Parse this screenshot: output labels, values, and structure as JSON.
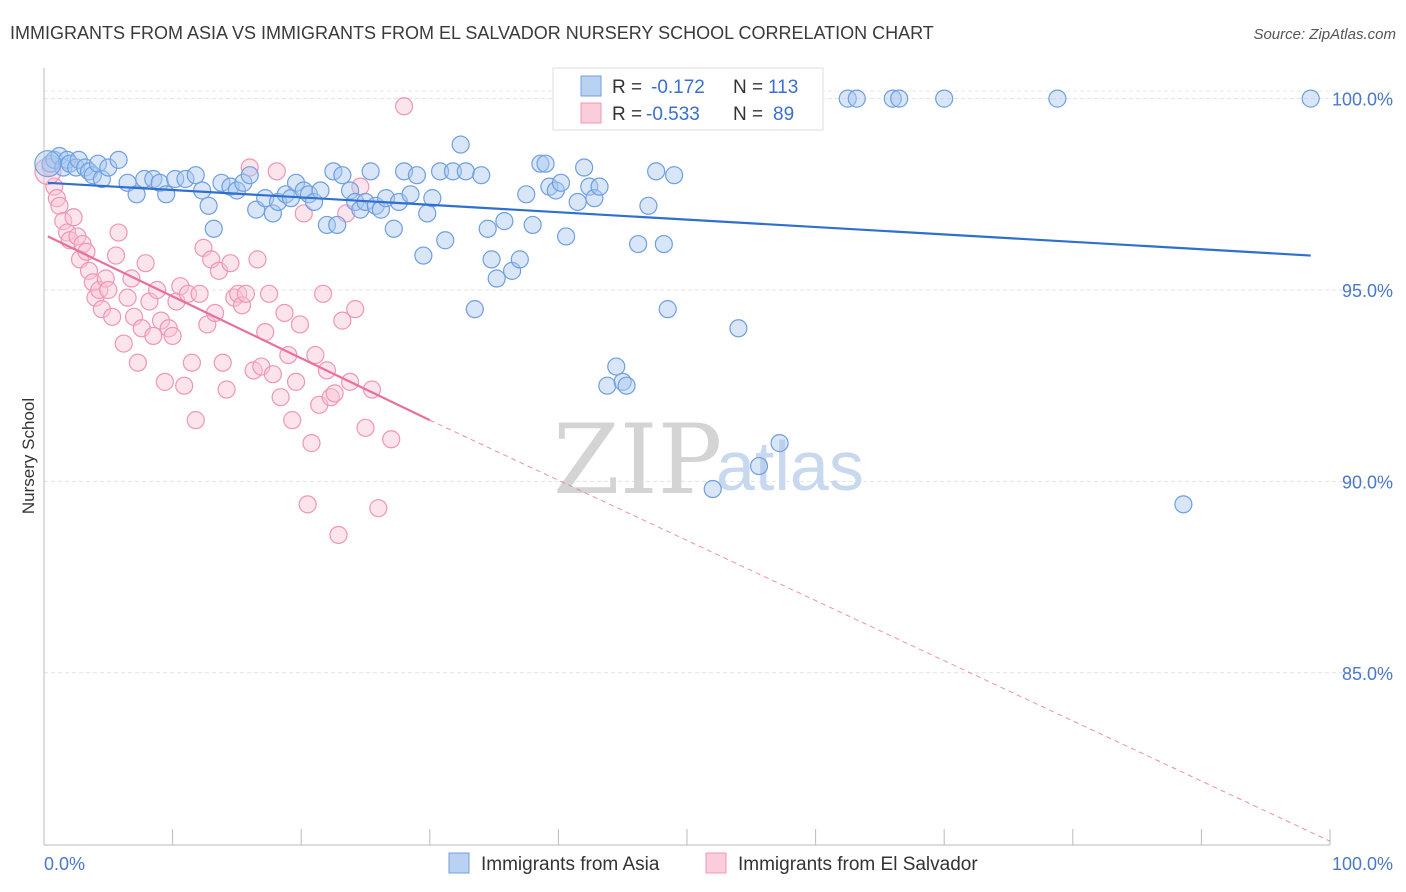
{
  "title": "IMMIGRANTS FROM ASIA VS IMMIGRANTS FROM EL SALVADOR NURSERY SCHOOL CORRELATION CHART",
  "source": "Source: ZipAtlas.com",
  "watermark": {
    "zip": "ZIP",
    "atlas": "atlas"
  },
  "legend_box": {
    "r_label": "R =",
    "n_label": "N =",
    "series": [
      {
        "r": "-0.172",
        "n": "113",
        "color": "#9ec0ec"
      },
      {
        "r": "-0.533",
        "n": "89",
        "color": "#f6b7cc"
      }
    ]
  },
  "chart_data": {
    "type": "scatter",
    "title": "IMMIGRANTS FROM ASIA VS IMMIGRANTS FROM EL SALVADOR NURSERY SCHOOL CORRELATION CHART",
    "xlabel": "",
    "ylabel": "Nursery School",
    "xlim": [
      0,
      100
    ],
    "ylim": [
      80.5,
      100.8
    ],
    "x_tick_labels": [
      "0.0%",
      "100.0%"
    ],
    "y_ticks": [
      85,
      90,
      95,
      100
    ],
    "y_tick_labels": [
      "85.0%",
      "90.0%",
      "95.0%",
      "100.0%"
    ],
    "grid": true,
    "legend_position": "bottom",
    "series": [
      {
        "name": "Immigrants from Asia",
        "color": "#6f9fe0",
        "fill": "#a9c8f0",
        "line_color": "#2f6fd0",
        "trend": {
          "x": [
            0.3,
            98.5
          ],
          "y": [
            97.8,
            95.9
          ],
          "dashed_to": null
        },
        "points": [
          [
            0.5,
            98.3
          ],
          [
            0.8,
            98.4
          ],
          [
            1.2,
            98.5
          ],
          [
            1.5,
            98.2
          ],
          [
            1.8,
            98.4
          ],
          [
            2.0,
            98.3
          ],
          [
            2.5,
            98.2
          ],
          [
            2.7,
            98.4
          ],
          [
            3.2,
            98.2
          ],
          [
            3.5,
            98.1
          ],
          [
            3.8,
            98.0
          ],
          [
            4.2,
            98.3
          ],
          [
            4.5,
            97.9
          ],
          [
            5.0,
            98.2
          ],
          [
            5.8,
            98.4
          ],
          [
            6.5,
            97.8
          ],
          [
            7.2,
            97.5
          ],
          [
            7.8,
            97.9
          ],
          [
            8.5,
            97.9
          ],
          [
            9.0,
            97.8
          ],
          [
            9.5,
            97.5
          ],
          [
            10.2,
            97.9
          ],
          [
            11.0,
            97.9
          ],
          [
            11.8,
            98.0
          ],
          [
            12.3,
            97.6
          ],
          [
            12.8,
            97.2
          ],
          [
            13.2,
            96.6
          ],
          [
            13.8,
            97.8
          ],
          [
            14.5,
            97.7
          ],
          [
            15.0,
            97.6
          ],
          [
            15.5,
            97.8
          ],
          [
            16.0,
            98.0
          ],
          [
            16.5,
            97.1
          ],
          [
            17.2,
            97.4
          ],
          [
            17.8,
            97.0
          ],
          [
            18.2,
            97.3
          ],
          [
            18.8,
            97.5
          ],
          [
            19.2,
            97.4
          ],
          [
            19.6,
            97.8
          ],
          [
            20.2,
            97.6
          ],
          [
            20.6,
            97.5
          ],
          [
            21.0,
            97.3
          ],
          [
            21.5,
            97.6
          ],
          [
            22.0,
            96.7
          ],
          [
            22.5,
            98.1
          ],
          [
            22.8,
            96.7
          ],
          [
            23.2,
            98.0
          ],
          [
            23.8,
            97.6
          ],
          [
            24.2,
            97.3
          ],
          [
            24.6,
            97.1
          ],
          [
            25.0,
            97.3
          ],
          [
            25.4,
            98.1
          ],
          [
            25.8,
            97.2
          ],
          [
            26.2,
            97.1
          ],
          [
            26.6,
            97.4
          ],
          [
            27.2,
            96.6
          ],
          [
            27.6,
            97.3
          ],
          [
            28.0,
            98.1
          ],
          [
            28.5,
            97.5
          ],
          [
            29.0,
            98.0
          ],
          [
            29.5,
            95.9
          ],
          [
            29.8,
            97.0
          ],
          [
            30.2,
            97.4
          ],
          [
            30.8,
            98.1
          ],
          [
            31.2,
            96.3
          ],
          [
            31.8,
            98.1
          ],
          [
            32.4,
            98.8
          ],
          [
            32.8,
            98.1
          ],
          [
            33.5,
            94.5
          ],
          [
            34.0,
            98.0
          ],
          [
            34.5,
            96.6
          ],
          [
            34.8,
            95.8
          ],
          [
            35.2,
            95.3
          ],
          [
            35.8,
            96.8
          ],
          [
            36.4,
            95.5
          ],
          [
            37.0,
            95.8
          ],
          [
            37.5,
            97.5
          ],
          [
            38.0,
            96.7
          ],
          [
            38.6,
            98.3
          ],
          [
            39.0,
            98.3
          ],
          [
            39.3,
            97.7
          ],
          [
            39.8,
            97.6
          ],
          [
            40.2,
            97.8
          ],
          [
            40.6,
            96.4
          ],
          [
            41.0,
            99.9
          ],
          [
            41.5,
            97.3
          ],
          [
            42.0,
            98.2
          ],
          [
            42.4,
            97.7
          ],
          [
            42.8,
            97.4
          ],
          [
            43.2,
            97.7
          ],
          [
            43.8,
            92.5
          ],
          [
            44.5,
            93.0
          ],
          [
            45.0,
            92.6
          ],
          [
            45.3,
            92.5
          ],
          [
            46.2,
            96.2
          ],
          [
            46.8,
            99.9
          ],
          [
            47.0,
            97.2
          ],
          [
            47.6,
            98.1
          ],
          [
            48.2,
            96.2
          ],
          [
            48.5,
            94.5
          ],
          [
            49.0,
            98.0
          ],
          [
            49.3,
            100.0
          ],
          [
            52.0,
            89.8
          ],
          [
            53.0,
            100.0
          ],
          [
            54.0,
            94.0
          ],
          [
            55.6,
            90.4
          ],
          [
            57.2,
            91.0
          ],
          [
            62.5,
            100.0
          ],
          [
            63.2,
            100.0
          ],
          [
            66.0,
            100.0
          ],
          [
            66.5,
            100.0
          ],
          [
            70.0,
            100.0
          ],
          [
            78.8,
            100.0
          ],
          [
            88.6,
            89.4
          ],
          [
            98.5,
            100.0
          ]
        ],
        "big_points": [
          [
            0.3,
            98.3
          ]
        ]
      },
      {
        "name": "Immigrants from El Salvador",
        "color": "#f095b5",
        "fill": "#f8c3d5",
        "line_color": "#e8709c",
        "trend": {
          "x": [
            0.3,
            30.0
          ],
          "y": [
            96.4,
            91.6
          ],
          "dashed_to": {
            "x": 100.0,
            "y": 80.6
          }
        },
        "points": [
          [
            0.5,
            98.2
          ],
          [
            0.8,
            97.7
          ],
          [
            1.0,
            97.4
          ],
          [
            1.2,
            97.2
          ],
          [
            1.5,
            96.8
          ],
          [
            1.8,
            96.5
          ],
          [
            2.0,
            96.3
          ],
          [
            2.3,
            96.9
          ],
          [
            2.6,
            96.4
          ],
          [
            2.8,
            95.8
          ],
          [
            3.0,
            96.2
          ],
          [
            3.3,
            96.0
          ],
          [
            3.5,
            95.5
          ],
          [
            3.8,
            95.2
          ],
          [
            4.0,
            94.8
          ],
          [
            4.3,
            95.0
          ],
          [
            4.5,
            94.5
          ],
          [
            4.8,
            95.3
          ],
          [
            5.0,
            95.0
          ],
          [
            5.3,
            94.3
          ],
          [
            5.6,
            95.9
          ],
          [
            5.8,
            96.5
          ],
          [
            6.2,
            93.6
          ],
          [
            6.5,
            94.8
          ],
          [
            6.8,
            95.3
          ],
          [
            7.0,
            94.3
          ],
          [
            7.3,
            93.1
          ],
          [
            7.6,
            94.0
          ],
          [
            7.9,
            95.7
          ],
          [
            8.2,
            94.7
          ],
          [
            8.5,
            93.8
          ],
          [
            8.8,
            95.0
          ],
          [
            9.1,
            94.2
          ],
          [
            9.4,
            92.6
          ],
          [
            9.7,
            94.0
          ],
          [
            10.0,
            93.8
          ],
          [
            10.3,
            94.7
          ],
          [
            10.6,
            95.1
          ],
          [
            10.9,
            92.5
          ],
          [
            11.2,
            94.9
          ],
          [
            11.5,
            93.1
          ],
          [
            11.8,
            91.6
          ],
          [
            12.1,
            94.9
          ],
          [
            12.4,
            96.1
          ],
          [
            12.7,
            94.1
          ],
          [
            13.0,
            95.8
          ],
          [
            13.3,
            94.4
          ],
          [
            13.6,
            95.5
          ],
          [
            13.9,
            93.1
          ],
          [
            14.2,
            92.4
          ],
          [
            14.5,
            95.7
          ],
          [
            14.8,
            94.8
          ],
          [
            15.1,
            94.9
          ],
          [
            15.4,
            94.6
          ],
          [
            15.7,
            94.9
          ],
          [
            16.0,
            98.2
          ],
          [
            16.3,
            92.9
          ],
          [
            16.6,
            95.8
          ],
          [
            16.9,
            93.0
          ],
          [
            17.2,
            93.9
          ],
          [
            17.5,
            94.9
          ],
          [
            17.8,
            92.8
          ],
          [
            18.1,
            98.1
          ],
          [
            18.4,
            92.2
          ],
          [
            18.7,
            94.4
          ],
          [
            19.0,
            93.3
          ],
          [
            19.3,
            91.6
          ],
          [
            19.6,
            92.6
          ],
          [
            19.9,
            94.1
          ],
          [
            20.2,
            97.0
          ],
          [
            20.5,
            89.4
          ],
          [
            20.8,
            91.0
          ],
          [
            21.1,
            93.3
          ],
          [
            21.4,
            92.0
          ],
          [
            21.7,
            94.9
          ],
          [
            22.0,
            92.9
          ],
          [
            22.3,
            92.2
          ],
          [
            22.6,
            92.3
          ],
          [
            22.9,
            88.6
          ],
          [
            23.2,
            94.2
          ],
          [
            23.5,
            97.0
          ],
          [
            23.8,
            92.6
          ],
          [
            24.2,
            94.5
          ],
          [
            24.6,
            97.7
          ],
          [
            25.0,
            91.4
          ],
          [
            25.5,
            92.4
          ],
          [
            26.0,
            89.3
          ],
          [
            27.0,
            91.1
          ],
          [
            28.0,
            99.8
          ]
        ],
        "big_points": [
          [
            0.3,
            98.1
          ]
        ]
      }
    ]
  },
  "bottom_legend": [
    {
      "label": "Immigrants from Asia",
      "color": "#9ec0ec"
    },
    {
      "label": "Immigrants from El Salvador",
      "color": "#f6b7cc"
    }
  ]
}
